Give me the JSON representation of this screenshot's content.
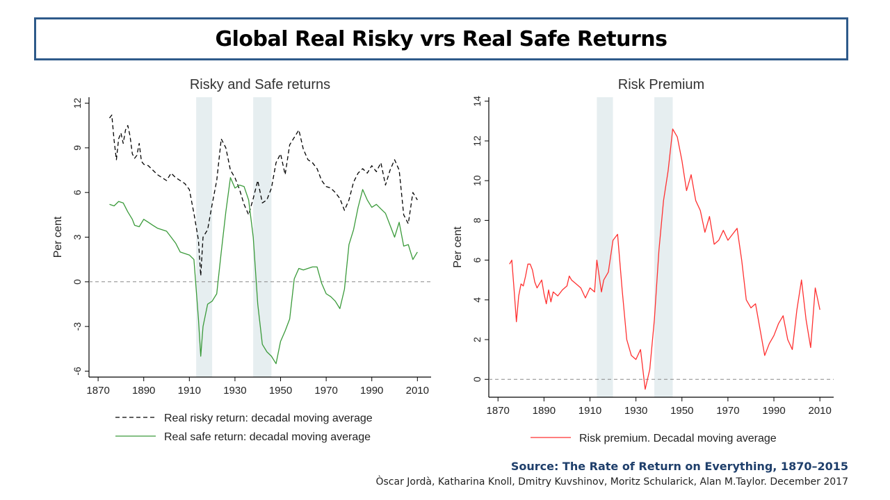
{
  "title": "Global Real Risky vrs Real Safe Returns",
  "source": {
    "line1": "Source: The Rate of Return on Everything,  1870–2015",
    "line2": "Òscar Jordà, Katharina Knoll, Dmitry Kuvshinov, Moritz Schularick, Alan M.Taylor. December 2017"
  },
  "chart_data": [
    {
      "type": "line",
      "title": "Risky and Safe returns",
      "xlabel": "",
      "ylabel": "Per cent",
      "xlim": [
        1866,
        2016
      ],
      "ylim": [
        -6.4,
        12.4
      ],
      "xticks": [
        1870,
        1890,
        1910,
        1930,
        1950,
        1970,
        1990,
        2010
      ],
      "yticks": [
        -6,
        -3,
        0,
        3,
        6,
        9,
        12
      ],
      "shaded_ranges": [
        [
          1913,
          1920
        ],
        [
          1938,
          1946
        ]
      ],
      "reference_line": 0,
      "series": [
        {
          "name": "Real risky return: decadal moving average",
          "style": "dashed",
          "color": "#000000",
          "x": [
            1875,
            1876,
            1877,
            1878,
            1879,
            1880,
            1881,
            1882,
            1883,
            1884,
            1885,
            1886,
            1887,
            1888,
            1889,
            1890,
            1892,
            1894,
            1896,
            1898,
            1900,
            1902,
            1904,
            1906,
            1908,
            1910,
            1912,
            1914,
            1915,
            1916,
            1918,
            1920,
            1922,
            1924,
            1926,
            1928,
            1930,
            1932,
            1934,
            1936,
            1938,
            1940,
            1942,
            1944,
            1946,
            1948,
            1950,
            1952,
            1954,
            1956,
            1958,
            1960,
            1962,
            1964,
            1966,
            1968,
            1970,
            1972,
            1974,
            1976,
            1978,
            1980,
            1982,
            1984,
            1986,
            1988,
            1990,
            1992,
            1994,
            1996,
            1998,
            2000,
            2002,
            2004,
            2006,
            2008,
            2010
          ],
          "values": [
            11.0,
            11.2,
            9.5,
            8.2,
            9.6,
            10.0,
            9.3,
            10.2,
            10.5,
            9.8,
            8.6,
            8.3,
            8.5,
            9.3,
            8.1,
            7.9,
            7.8,
            7.5,
            7.2,
            7.0,
            6.8,
            7.3,
            7.0,
            6.8,
            6.6,
            6.2,
            4.6,
            2.8,
            0.4,
            3.0,
            3.5,
            5.2,
            6.8,
            9.6,
            9.0,
            7.5,
            7.0,
            6.2,
            5.2,
            4.5,
            5.6,
            6.8,
            5.3,
            5.5,
            6.3,
            8.0,
            8.6,
            7.2,
            9.2,
            9.7,
            10.2,
            8.9,
            8.2,
            8.0,
            7.6,
            6.8,
            6.4,
            6.3,
            6.0,
            5.6,
            4.8,
            5.5,
            6.7,
            7.3,
            7.6,
            7.3,
            7.8,
            7.4,
            8.0,
            6.5,
            7.5,
            8.2,
            7.5,
            4.5,
            3.9,
            6.0,
            5.5
          ]
        },
        {
          "name": "Real safe return: decadal moving average",
          "style": "solid",
          "color": "#3a9a3a",
          "x": [
            1875,
            1877,
            1879,
            1881,
            1883,
            1885,
            1886,
            1888,
            1890,
            1892,
            1894,
            1896,
            1898,
            1900,
            1902,
            1904,
            1906,
            1908,
            1910,
            1912,
            1914,
            1915,
            1916,
            1918,
            1920,
            1922,
            1924,
            1926,
            1928,
            1930,
            1932,
            1934,
            1936,
            1938,
            1940,
            1942,
            1944,
            1946,
            1948,
            1950,
            1952,
            1954,
            1956,
            1958,
            1960,
            1962,
            1964,
            1966,
            1968,
            1970,
            1972,
            1974,
            1976,
            1978,
            1980,
            1982,
            1984,
            1986,
            1988,
            1990,
            1992,
            1994,
            1996,
            1998,
            2000,
            2002,
            2004,
            2006,
            2008,
            2010
          ],
          "values": [
            5.2,
            5.1,
            5.4,
            5.3,
            4.7,
            4.2,
            3.8,
            3.7,
            4.2,
            4.0,
            3.8,
            3.6,
            3.5,
            3.4,
            3.0,
            2.6,
            2.0,
            1.9,
            1.8,
            1.5,
            -2.5,
            -5.0,
            -3.0,
            -1.5,
            -1.3,
            -0.8,
            2.0,
            4.7,
            7.0,
            6.3,
            6.5,
            6.4,
            5.5,
            3.0,
            -1.5,
            -4.2,
            -4.7,
            -5.0,
            -5.5,
            -4.0,
            -3.3,
            -2.5,
            0.2,
            0.9,
            0.8,
            0.9,
            1.0,
            1.0,
            -0.1,
            -0.8,
            -1.0,
            -1.3,
            -1.8,
            -0.5,
            2.5,
            3.5,
            5.0,
            6.2,
            5.5,
            5.0,
            5.2,
            4.9,
            4.6,
            3.8,
            3.0,
            4.0,
            2.4,
            2.5,
            1.5,
            2.0
          ]
        }
      ]
    },
    {
      "type": "line",
      "title": "Risk Premium",
      "xlabel": "",
      "ylabel": "Per cent",
      "xlim": [
        1866,
        2016
      ],
      "ylim": [
        -0.9,
        14.2
      ],
      "xticks": [
        1870,
        1890,
        1910,
        1930,
        1950,
        1970,
        1990,
        2010
      ],
      "yticks": [
        0,
        2,
        4,
        6,
        8,
        10,
        12,
        14
      ],
      "shaded_ranges": [
        [
          1913,
          1920
        ],
        [
          1938,
          1946
        ]
      ],
      "reference_line": 0,
      "series": [
        {
          "name": "Risk premium. Decadal moving average",
          "style": "solid",
          "color": "#ff3030",
          "x": [
            1875,
            1876,
            1877,
            1878,
            1879,
            1880,
            1881,
            1882,
            1883,
            1884,
            1885,
            1886,
            1887,
            1888,
            1889,
            1890,
            1891,
            1892,
            1893,
            1894,
            1896,
            1898,
            1900,
            1901,
            1902,
            1904,
            1906,
            1908,
            1910,
            1912,
            1913,
            1914,
            1915,
            1916,
            1918,
            1920,
            1922,
            1924,
            1926,
            1928,
            1930,
            1932,
            1934,
            1936,
            1938,
            1940,
            1942,
            1944,
            1946,
            1948,
            1950,
            1952,
            1954,
            1956,
            1958,
            1960,
            1962,
            1964,
            1966,
            1968,
            1970,
            1972,
            1974,
            1976,
            1978,
            1980,
            1982,
            1984,
            1986,
            1988,
            1990,
            1992,
            1994,
            1996,
            1998,
            2000,
            2002,
            2004,
            2006,
            2008,
            2010
          ],
          "values": [
            5.8,
            6.0,
            4.5,
            2.9,
            4.2,
            4.8,
            4.7,
            5.2,
            5.8,
            5.8,
            5.5,
            4.9,
            4.6,
            4.8,
            5.0,
            4.3,
            3.8,
            4.5,
            3.9,
            4.4,
            4.2,
            4.5,
            4.7,
            5.2,
            5.0,
            4.8,
            4.6,
            4.1,
            4.6,
            4.4,
            6.0,
            5.2,
            4.4,
            5.0,
            5.4,
            7.0,
            7.3,
            4.5,
            2.0,
            1.2,
            1.0,
            1.5,
            -0.5,
            0.5,
            3.0,
            6.5,
            9.0,
            10.5,
            12.6,
            12.2,
            11.0,
            9.5,
            10.3,
            9.0,
            8.5,
            7.4,
            8.2,
            6.8,
            7.0,
            7.5,
            7.0,
            7.3,
            7.6,
            6.0,
            4.0,
            3.6,
            3.8,
            2.5,
            1.2,
            1.8,
            2.2,
            2.8,
            3.2,
            2.0,
            1.5,
            3.5,
            5.0,
            3.0,
            1.6,
            4.6,
            3.5
          ]
        }
      ]
    }
  ]
}
